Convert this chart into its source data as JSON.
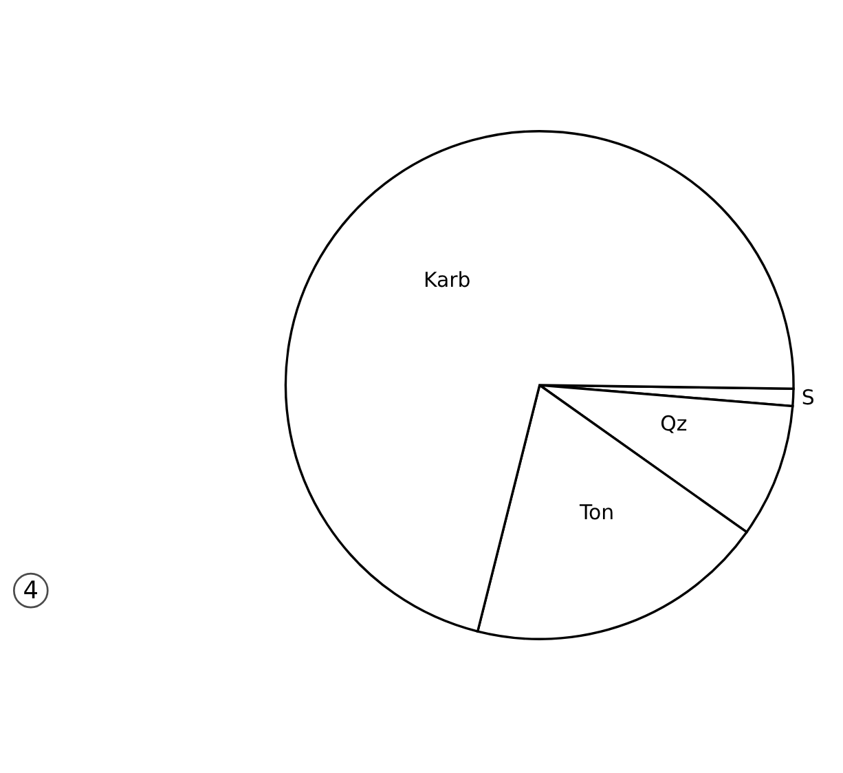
{
  "chart_data": {
    "type": "pie",
    "categories": [
      "S",
      "Qz",
      "Ton",
      "Karb"
    ],
    "values": [
      1.1,
      8.5,
      19.1,
      71.3
    ],
    "colors": [
      "#ffffff",
      "#ffffff",
      "#ffffff",
      "#ffffff"
    ],
    "annotations": [
      "4"
    ]
  }
}
